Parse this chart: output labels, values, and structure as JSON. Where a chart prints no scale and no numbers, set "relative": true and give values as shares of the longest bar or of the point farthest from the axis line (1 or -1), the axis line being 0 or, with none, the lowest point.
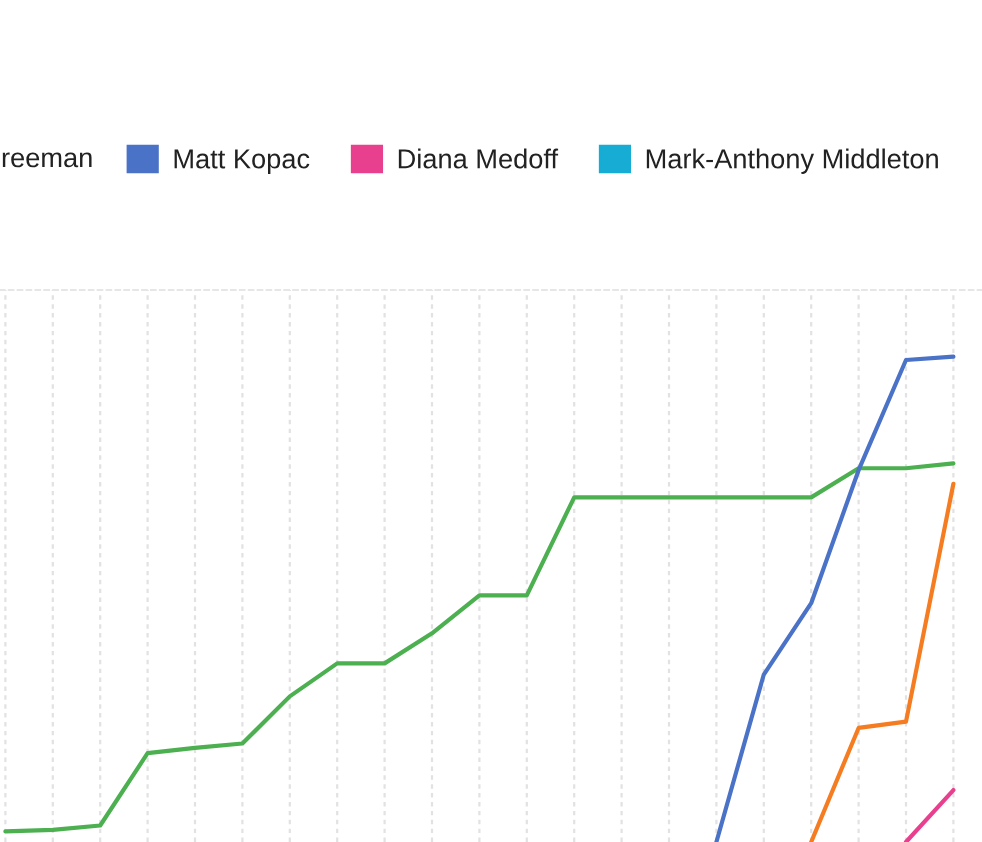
{
  "chart_data": {
    "type": "line",
    "relative": true,
    "categories": [
      null,
      null,
      null,
      null,
      null,
      null,
      null,
      null,
      null,
      null,
      null,
      null,
      null,
      null,
      null,
      null,
      null,
      null,
      null,
      null,
      null
    ],
    "series": [
      {
        "color": "#4caf50",
        "values": [
          0.022,
          0.025,
          0.034,
          0.183,
          0.194,
          0.203,
          0.3,
          0.368,
          0.368,
          0.43,
          0.508,
          0.508,
          0.71,
          0.71,
          0.71,
          0.71,
          0.71,
          0.71,
          0.77,
          0.77,
          0.78
        ]
      },
      {
        "color": "#f57c20",
        "values": [
          null,
          null,
          null,
          null,
          null,
          null,
          null,
          null,
          null,
          null,
          null,
          null,
          null,
          null,
          null,
          null,
          null,
          0,
          0.235,
          0.248,
          0.738
        ]
      },
      {
        "name": "Matt Kopac",
        "color": "#4a72c6",
        "values": [
          null,
          null,
          null,
          null,
          null,
          null,
          null,
          null,
          null,
          null,
          null,
          null,
          null,
          null,
          null,
          0,
          0.345,
          0.492,
          0.766,
          0.993,
          1.0
        ]
      },
      {
        "name": "Diana Medoff",
        "color": "#e8408f",
        "values": [
          null,
          null,
          null,
          null,
          null,
          null,
          null,
          null,
          null,
          null,
          null,
          null,
          null,
          null,
          null,
          null,
          null,
          null,
          null,
          0,
          0.107
        ]
      },
      {
        "name": "Mark-Anthony Middleton",
        "color": "#17acd4",
        "values": [
          null,
          null,
          null,
          null,
          null,
          null,
          null,
          null,
          null,
          null,
          null,
          null,
          null,
          null,
          null,
          null,
          null,
          null,
          null,
          null,
          null
        ]
      }
    ],
    "annotations": [
      "reeman"
    ],
    "legend": "top",
    "grid": "x"
  }
}
